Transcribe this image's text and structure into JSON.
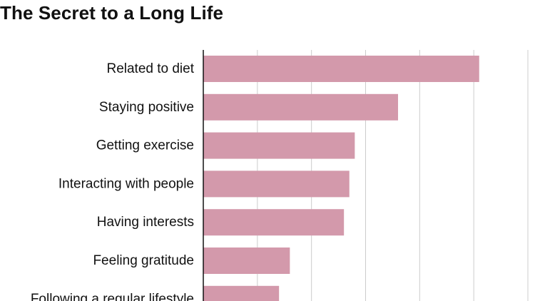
{
  "chart_data": {
    "type": "bar",
    "orientation": "horizontal",
    "title": "The Secret to a Long Life",
    "categories": [
      "Related to diet",
      "Staying positive",
      "Getting exercise",
      "Interacting with people",
      "Having interests",
      "Feeling gratitude",
      "Following a regular lifestyle"
    ],
    "values": [
      51,
      36,
      28,
      27,
      26,
      16,
      14
    ],
    "xlim": [
      0,
      60
    ],
    "xtick_step": 10,
    "grid": true,
    "bar_color": "#d399ab",
    "grid_color": "#cccccc",
    "axis_color": "#111111"
  }
}
